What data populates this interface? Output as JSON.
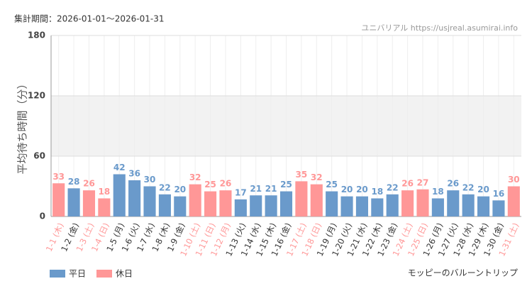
{
  "chart_data": {
    "type": "bar",
    "title": "集計期間：2026-01-01～2026-01-31",
    "subtitle": "ユニバリアル https://usjreal.asumirai.info",
    "y_label": "平均待ち時間（分）",
    "footer": "モッピーのバルーントリップ",
    "categories": [
      "1-1 (木)",
      "1-2 (金)",
      "1-3 (土)",
      "1-4 (日)",
      "1-5 (月)",
      "1-6 (火)",
      "1-7 (水)",
      "1-8 (木)",
      "1-9 (金)",
      "1-10 (土)",
      "1-11 (日)",
      "1-12 (月)",
      "1-13 (火)",
      "1-14 (水)",
      "1-15 (木)",
      "1-16 (金)",
      "1-17 (土)",
      "1-18 (日)",
      "1-19 (月)",
      "1-20 (火)",
      "1-21 (水)",
      "1-22 (木)",
      "1-23 (金)",
      "1-24 (土)",
      "1-25 (日)",
      "1-26 (月)",
      "1-27 (火)",
      "1-28 (水)",
      "1-29 (木)",
      "1-30 (金)",
      "1-31 (土)"
    ],
    "series": [
      {
        "name": "平日",
        "color": "#6a9acb",
        "values": [
          null,
          28,
          null,
          null,
          42,
          36,
          30,
          22,
          20,
          null,
          null,
          null,
          17,
          21,
          21,
          25,
          null,
          null,
          25,
          20,
          20,
          18,
          22,
          null,
          null,
          18,
          26,
          22,
          20,
          16,
          null
        ]
      },
      {
        "name": "休日",
        "color": "#ff9797",
        "values": [
          33,
          null,
          26,
          18,
          null,
          null,
          null,
          null,
          null,
          32,
          25,
          26,
          null,
          null,
          null,
          null,
          35,
          32,
          null,
          null,
          null,
          null,
          null,
          26,
          27,
          null,
          null,
          null,
          null,
          null,
          30
        ]
      }
    ],
    "ylim": [
      0,
      180
    ],
    "yticks": [
      0,
      60,
      120,
      180
    ],
    "grid": true,
    "plot_bands": [
      {
        "from": 60,
        "to": 120,
        "color": "#f2f2f2"
      }
    ],
    "legend": "bottom-left"
  }
}
